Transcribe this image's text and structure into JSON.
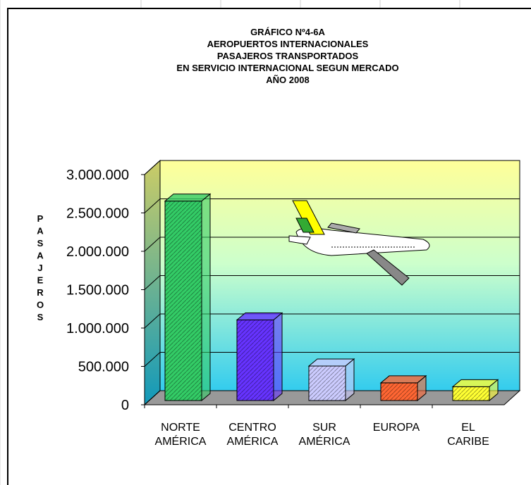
{
  "chart_data": {
    "type": "bar",
    "title": [
      "GRÁFICO Nº4-6A",
      "AEROPUERTOS INTERNACIONALES",
      "PASAJEROS TRANSPORTADOS",
      "EN SERVICIO INTERNACIONAL SEGUN MERCADO",
      "AÑO 2008"
    ],
    "y_label": "PASAJEROS",
    "categories": [
      "NORTE AMÉRICA",
      "CENTRO AMÉRICA",
      "SUR AMÉRICA",
      "EUROPA",
      "EL CARIBE"
    ],
    "values": [
      2600000,
      1050000,
      450000,
      230000,
      180000
    ],
    "colors": [
      "#33cc66",
      "#6633ff",
      "#ccccff",
      "#ff6633",
      "#ffff33"
    ],
    "ylim": [
      0,
      3000000
    ],
    "yticks": [
      0,
      {
        "value": 500000,
        "label": "500.000"
      },
      {
        "value": 1000000,
        "label": "1.000.000"
      },
      {
        "value": 1500000,
        "label": "1.500.000"
      },
      {
        "value": 2000000,
        "label": "2.000.000"
      },
      {
        "value": 2500000,
        "label": "2.500.000"
      },
      {
        "value": 3000000,
        "label": "3.000.000"
      }
    ],
    "grid": true
  }
}
